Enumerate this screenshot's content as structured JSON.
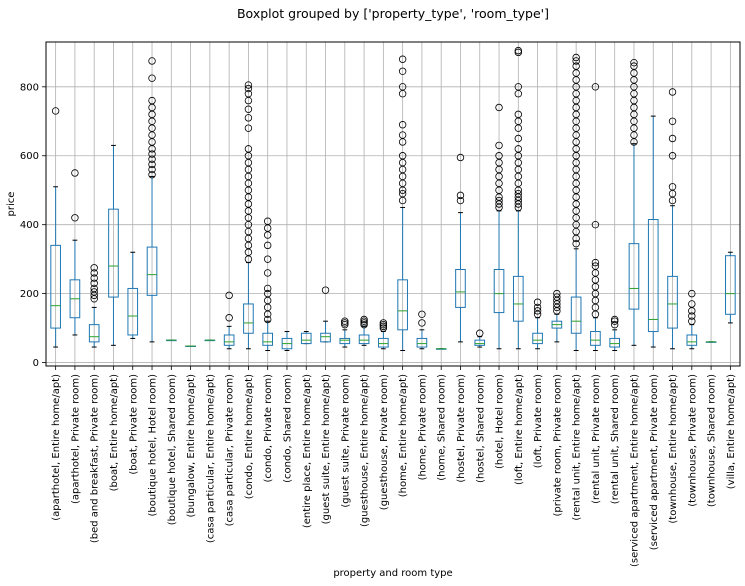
{
  "chart_data": {
    "type": "box",
    "title": "Boxplot grouped by ['property_type', 'room_type']",
    "xlabel": "property and room type",
    "ylabel": "price",
    "ylim": [
      -10,
      930
    ],
    "yticks": [
      0,
      200,
      400,
      600,
      800
    ],
    "grid": true,
    "colors": {
      "box": "#1f77b4",
      "median": "#2ca02c",
      "whisker": "#1f77b4",
      "flier": "#000000"
    },
    "categories": [
      "(aparthotel, Entire home/apt)",
      "(aparthotel, Private room)",
      "(bed and breakfast, Private room)",
      "(boat, Entire home/apt)",
      "(boat, Private room)",
      "(boutique hotel, Hotel room)",
      "(boutique hotel, Shared room)",
      "(bungalow, Entire home/apt)",
      "(casa particular, Entire home/apt)",
      "(casa particular, Private room)",
      "(condo, Entire home/apt)",
      "(condo, Private room)",
      "(condo, Shared room)",
      "(entire place, Entire home/apt)",
      "(guest suite, Entire home/apt)",
      "(guest suite, Private room)",
      "(guesthouse, Entire home/apt)",
      "(guesthouse, Private room)",
      "(home, Entire home/apt)",
      "(home, Private room)",
      "(home, Shared room)",
      "(hostel, Private room)",
      "(hostel, Shared room)",
      "(hotel, Hotel room)",
      "(loft, Entire home/apt)",
      "(loft, Private room)",
      "(private room, Private room)",
      "(rental unit, Entire home/apt)",
      "(rental unit, Private room)",
      "(rental unit, Shared room)",
      "(serviced apartment, Entire home/apt)",
      "(serviced apartment, Private room)",
      "(townhouse, Entire home/apt)",
      "(townhouse, Private room)",
      "(townhouse, Shared room)",
      "(villa, Entire home/apt)"
    ],
    "boxes": [
      {
        "whislo": 45,
        "q1": 100,
        "med": 165,
        "q3": 340,
        "whishi": 510,
        "fliers": [
          730
        ]
      },
      {
        "whislo": 80,
        "q1": 130,
        "med": 185,
        "q3": 240,
        "whishi": 355,
        "fliers": [
          420,
          550
        ]
      },
      {
        "whislo": 45,
        "q1": 60,
        "med": 75,
        "q3": 110,
        "whishi": 160,
        "fliers": [
          185,
          195,
          205,
          215,
          230,
          245,
          260,
          275
        ]
      },
      {
        "whislo": 50,
        "q1": 190,
        "med": 280,
        "q3": 445,
        "whishi": 630,
        "fliers": []
      },
      {
        "whislo": 70,
        "q1": 80,
        "med": 135,
        "q3": 215,
        "whishi": 320,
        "fliers": []
      },
      {
        "whislo": 60,
        "q1": 195,
        "med": 255,
        "q3": 335,
        "whishi": 540,
        "fliers": [
          545,
          560,
          575,
          590,
          605,
          620,
          640,
          660,
          680,
          700,
          720,
          740,
          760,
          825,
          875
        ]
      },
      {
        "whislo": 65,
        "q1": 65,
        "med": 65,
        "q3": 65,
        "whishi": 65,
        "fliers": []
      },
      {
        "whislo": 48,
        "q1": 48,
        "med": 48,
        "q3": 48,
        "whishi": 48,
        "fliers": []
      },
      {
        "whislo": 65,
        "q1": 65,
        "med": 65,
        "q3": 65,
        "whishi": 65,
        "fliers": []
      },
      {
        "whislo": 40,
        "q1": 50,
        "med": 60,
        "q3": 80,
        "whishi": 105,
        "fliers": [
          130,
          195
        ]
      },
      {
        "whislo": 40,
        "q1": 85,
        "med": 115,
        "q3": 170,
        "whishi": 290,
        "fliers": [
          300,
          320,
          340,
          360,
          380,
          400,
          420,
          440,
          460,
          480,
          500,
          520,
          540,
          560,
          580,
          600,
          620,
          680,
          710,
          735,
          760,
          780,
          795,
          805
        ]
      },
      {
        "whislo": 35,
        "q1": 50,
        "med": 60,
        "q3": 85,
        "whishi": 120,
        "fliers": [
          125,
          140,
          160,
          180,
          200,
          215,
          260,
          300,
          340,
          370,
          390,
          410
        ]
      },
      {
        "whislo": 35,
        "q1": 40,
        "med": 55,
        "q3": 70,
        "whishi": 90,
        "fliers": []
      },
      {
        "whislo": 55,
        "q1": 55,
        "med": 65,
        "q3": 85,
        "whishi": 90,
        "fliers": []
      },
      {
        "whislo": 60,
        "q1": 60,
        "med": 75,
        "q3": 85,
        "whishi": 120,
        "fliers": [
          210
        ]
      },
      {
        "whislo": 45,
        "q1": 55,
        "med": 65,
        "q3": 70,
        "whishi": 95,
        "fliers": [
          110,
          115,
          120
        ]
      },
      {
        "whislo": 50,
        "q1": 55,
        "med": 65,
        "q3": 80,
        "whishi": 105,
        "fliers": [
          110,
          115,
          120,
          125
        ]
      },
      {
        "whislo": 40,
        "q1": 45,
        "med": 55,
        "q3": 70,
        "whishi": 90,
        "fliers": [
          100,
          105,
          110,
          115
        ]
      },
      {
        "whislo": 35,
        "q1": 95,
        "med": 150,
        "q3": 240,
        "whishi": 450,
        "fliers": [
          470,
          490,
          500,
          520,
          540,
          560,
          580,
          600,
          640,
          660,
          690,
          780,
          800,
          845,
          880
        ]
      },
      {
        "whislo": 40,
        "q1": 45,
        "med": 55,
        "q3": 70,
        "whishi": 95,
        "fliers": [
          115,
          140
        ]
      },
      {
        "whislo": 40,
        "q1": 40,
        "med": 40,
        "q3": 40,
        "whishi": 40,
        "fliers": []
      },
      {
        "whislo": 60,
        "q1": 160,
        "med": 205,
        "q3": 270,
        "whishi": 435,
        "fliers": [
          470,
          485,
          595
        ]
      },
      {
        "whislo": 45,
        "q1": 50,
        "med": 55,
        "q3": 65,
        "whishi": 75,
        "fliers": [
          85
        ]
      },
      {
        "whislo": 40,
        "q1": 145,
        "med": 200,
        "q3": 270,
        "whishi": 440,
        "fliers": [
          450,
          460,
          470,
          480,
          500,
          520,
          540,
          560,
          580,
          600,
          630,
          740
        ]
      },
      {
        "whislo": 40,
        "q1": 120,
        "med": 170,
        "q3": 250,
        "whishi": 440,
        "fliers": [
          450,
          460,
          470,
          480,
          490,
          500,
          520,
          540,
          560,
          580,
          600,
          620,
          650,
          680,
          700,
          720,
          780,
          800,
          900,
          905
        ]
      },
      {
        "whislo": 40,
        "q1": 55,
        "med": 65,
        "q3": 85,
        "whishi": 130,
        "fliers": [
          140,
          150,
          160,
          175
        ]
      },
      {
        "whislo": 60,
        "q1": 100,
        "med": 110,
        "q3": 120,
        "whishi": 140,
        "fliers": [
          150,
          160,
          170,
          180,
          190,
          200
        ]
      },
      {
        "whislo": 35,
        "q1": 85,
        "med": 120,
        "q3": 190,
        "whishi": 330,
        "fliers": [
          345,
          360,
          380,
          400,
          420,
          440,
          460,
          480,
          500,
          520,
          540,
          560,
          580,
          600,
          620,
          640,
          660,
          680,
          700,
          720,
          740,
          760,
          780,
          800,
          820,
          840,
          860,
          875,
          885
        ]
      },
      {
        "whislo": 35,
        "q1": 50,
        "med": 65,
        "q3": 90,
        "whishi": 130,
        "fliers": [
          140,
          160,
          180,
          200,
          220,
          240,
          260,
          280,
          290,
          400,
          800
        ]
      },
      {
        "whislo": 35,
        "q1": 45,
        "med": 55,
        "q3": 70,
        "whishi": 95,
        "fliers": [
          110,
          120,
          125
        ]
      },
      {
        "whislo": 50,
        "q1": 155,
        "med": 215,
        "q3": 345,
        "whishi": 635,
        "fliers": [
          640,
          660,
          680,
          700,
          720,
          740,
          760,
          780,
          800,
          820,
          840,
          860,
          870
        ]
      },
      {
        "whislo": 45,
        "q1": 90,
        "med": 125,
        "q3": 415,
        "whishi": 715,
        "fliers": []
      },
      {
        "whislo": 40,
        "q1": 100,
        "med": 170,
        "q3": 250,
        "whishi": 455,
        "fliers": [
          470,
          490,
          510,
          600,
          650,
          700,
          785
        ]
      },
      {
        "whislo": 40,
        "q1": 50,
        "med": 60,
        "q3": 80,
        "whishi": 110,
        "fliers": [
          120,
          135,
          150,
          170,
          200
        ]
      },
      {
        "whislo": 60,
        "q1": 60,
        "med": 60,
        "q3": 60,
        "whishi": 60,
        "fliers": []
      },
      {
        "whislo": 115,
        "q1": 140,
        "med": 200,
        "q3": 310,
        "whishi": 320,
        "fliers": []
      }
    ]
  }
}
